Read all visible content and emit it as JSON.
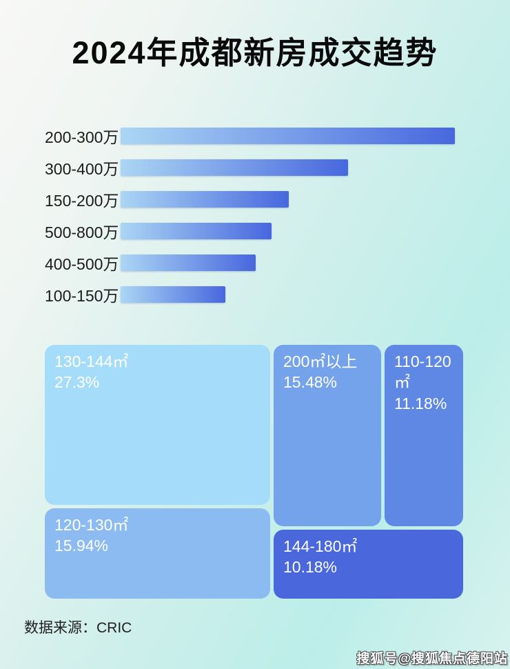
{
  "page": {
    "title": "2024年成都新房成交趋势",
    "source_note": "数据来源：CRIC",
    "watermark": "搜狐号@搜狐焦点德阳站"
  },
  "chart_data": [
    {
      "type": "bar",
      "orientation": "horizontal",
      "title": "",
      "categories": [
        "200-300万",
        "300-400万",
        "150-200万",
        "500-800万",
        "400-500万",
        "100-150万"
      ],
      "values": [
        100,
        68,
        50.4,
        45.2,
        40.5,
        31.4
      ],
      "values_note": "numeric values not labeled in image; values are bar lengths estimated relative to longest bar = 100",
      "bar_gradient": [
        "#abd6f4",
        "#4767de"
      ],
      "legend": "none",
      "grid": "off"
    },
    {
      "type": "treemap",
      "title": "",
      "items": [
        {
          "label": "130-144㎡",
          "value": 27.3,
          "display": "27.3%",
          "color": "#a5dcfa"
        },
        {
          "label": "120-130㎡",
          "value": 15.94,
          "display": "15.94%",
          "color": "#8bbbf0"
        },
        {
          "label": "200㎡以上",
          "value": 15.48,
          "display": "15.48%",
          "color": "#74a3ec"
        },
        {
          "label": "110-120㎡",
          "value": 11.18,
          "display": "11.18%",
          "color": "#5f88e4"
        },
        {
          "label": "144-180㎡",
          "value": 10.18,
          "display": "10.18%",
          "color": "#4a67dc"
        }
      ]
    }
  ]
}
